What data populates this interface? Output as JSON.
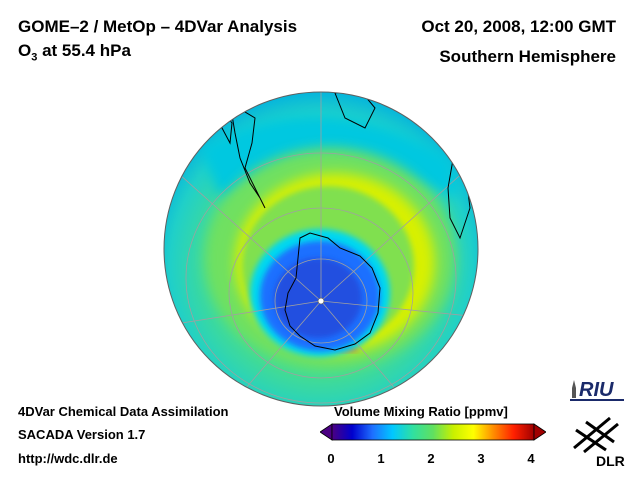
{
  "header": {
    "title": "GOME–2 / MetOp – 4DVar Analysis",
    "subtitle_prefix": "O",
    "subtitle_sub": "3",
    "subtitle_suffix": " at 55.4 hPa",
    "datetime": "Oct 20, 2008, 12:00 GMT",
    "hemisphere": "Southern Hemisphere"
  },
  "footer": {
    "line1": "4DVar Chemical Data Assimilation",
    "line2": "SACADA Version 1.7",
    "line3": "http://wdc.dlr.de"
  },
  "colorbar": {
    "title": "Volume Mixing Ratio [ppmv]",
    "ticks": [
      "0",
      "1",
      "2",
      "3",
      "4"
    ],
    "colors": [
      "#4b0082",
      "#0000cd",
      "#1e6fff",
      "#00c8ff",
      "#30e0a0",
      "#60e060",
      "#c8f000",
      "#ffff00",
      "#ff8c00",
      "#ff2000",
      "#a00000"
    ]
  },
  "logos": {
    "riu": "RIU",
    "dlr": "DLR"
  },
  "map": {
    "projection": "orthographic south polar",
    "field_colors": {
      "deep": "#2050e0",
      "inner": "#1e6fff",
      "edge": "#00d8f0",
      "collar": "#80e040",
      "yellow": "#e8f000",
      "orange": "#ff6020",
      "band": "#50e080",
      "outer": "#00c8e0"
    }
  }
}
